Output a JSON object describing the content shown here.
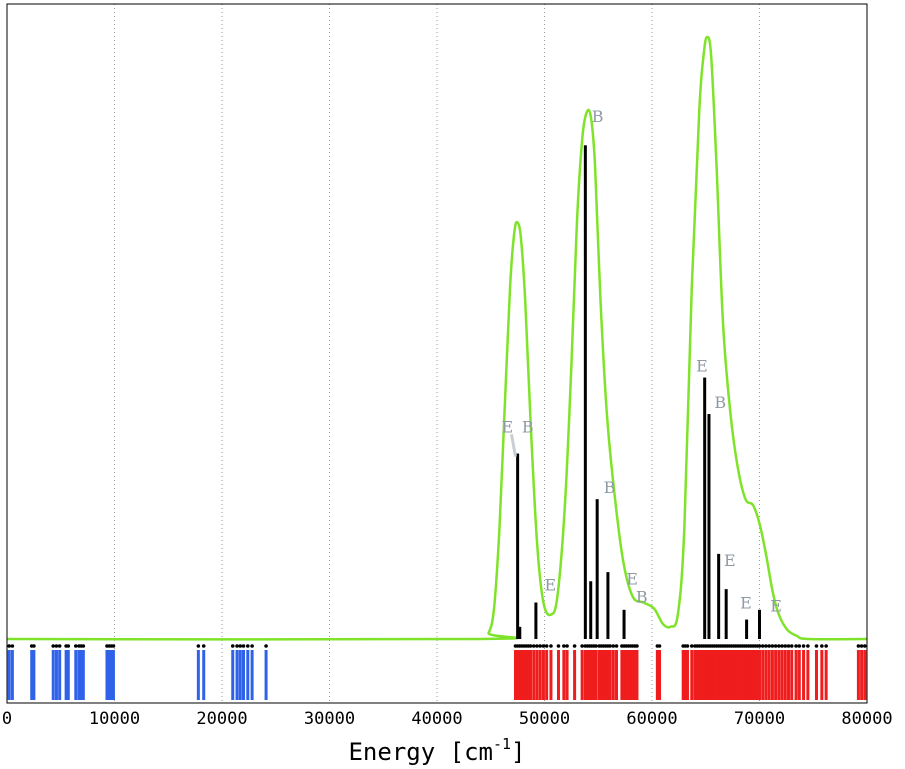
{
  "chart_data": {
    "type": "line",
    "xlabel": {
      "main": "Energy [cm",
      "sup": "-1",
      "close": "]"
    },
    "xlim": [
      0,
      80000
    ],
    "x_ticks": [
      "0",
      "10000",
      "20000",
      "30000",
      "40000",
      "50000",
      "60000",
      "70000",
      "80000"
    ],
    "x_tick_values": [
      0,
      10000,
      20000,
      30000,
      40000,
      50000,
      60000,
      70000,
      80000
    ],
    "ylim": [
      0,
      1
    ],
    "grid": "vertical dotted",
    "colors": {
      "envelope": "#7fe32a",
      "sticks": "#000000",
      "blue_levels": "#2f62e8",
      "red_levels": "#ef1d1d",
      "labels": "#8f9aa4",
      "grid": "#9a9a9a"
    },
    "series": [
      {
        "kind": "envelope",
        "points": [
          [
            0,
            0
          ],
          [
            44000,
            0
          ],
          [
            44800,
            0.01
          ],
          [
            45300,
            0.05
          ],
          [
            45800,
            0.18
          ],
          [
            46300,
            0.38
          ],
          [
            46800,
            0.58
          ],
          [
            47200,
            0.67
          ],
          [
            47500,
            0.685
          ],
          [
            47800,
            0.66
          ],
          [
            48200,
            0.56
          ],
          [
            48700,
            0.36
          ],
          [
            49300,
            0.16
          ],
          [
            49900,
            0.06
          ],
          [
            50600,
            0.04
          ],
          [
            51200,
            0.07
          ],
          [
            51900,
            0.22
          ],
          [
            52500,
            0.45
          ],
          [
            53000,
            0.68
          ],
          [
            53500,
            0.82
          ],
          [
            53900,
            0.865
          ],
          [
            54300,
            0.86
          ],
          [
            54700,
            0.78
          ],
          [
            55200,
            0.56
          ],
          [
            55800,
            0.37
          ],
          [
            56500,
            0.24
          ],
          [
            57300,
            0.13
          ],
          [
            58200,
            0.07
          ],
          [
            59200,
            0.06
          ],
          [
            60200,
            0.05
          ],
          [
            61000,
            0.025
          ],
          [
            61700,
            0.02
          ],
          [
            62400,
            0.04
          ],
          [
            63000,
            0.18
          ],
          [
            63700,
            0.58
          ],
          [
            64400,
            0.87
          ],
          [
            64800,
            0.96
          ],
          [
            65100,
            0.99
          ],
          [
            65500,
            0.96
          ],
          [
            66000,
            0.78
          ],
          [
            66600,
            0.52
          ],
          [
            67300,
            0.37
          ],
          [
            68000,
            0.28
          ],
          [
            68700,
            0.23
          ],
          [
            69400,
            0.22
          ],
          [
            70000,
            0.19
          ],
          [
            70600,
            0.14
          ],
          [
            71200,
            0.08
          ],
          [
            71800,
            0.04
          ],
          [
            72600,
            0.015
          ],
          [
            73500,
            0.005
          ],
          [
            74500,
            0
          ],
          [
            80000,
            0
          ]
        ]
      },
      {
        "kind": "sticks",
        "values": [
          [
            47500,
            0.305
          ],
          [
            47700,
            0.02
          ],
          [
            49200,
            0.06
          ],
          [
            53800,
            0.812
          ],
          [
            54300,
            0.095
          ],
          [
            54900,
            0.23
          ],
          [
            55900,
            0.11
          ],
          [
            57400,
            0.048
          ],
          [
            64900,
            0.43
          ],
          [
            65300,
            0.37
          ],
          [
            66200,
            0.14
          ],
          [
            66900,
            0.082
          ],
          [
            68800,
            0.032
          ],
          [
            70000,
            0.048
          ]
        ]
      },
      {
        "kind": "levels",
        "color": "blue",
        "values": [
          200,
          500,
          2300,
          2500,
          4300,
          4600,
          4900,
          5500,
          5700,
          6400,
          6700,
          6900,
          7100,
          9300,
          9500,
          9700,
          9900,
          17800,
          18300,
          21000,
          21400,
          21700,
          22000,
          22400,
          22800,
          24100
        ]
      },
      {
        "kind": "levels",
        "color": "red",
        "values": [
          47300,
          47500,
          47700,
          47900,
          48100,
          48300,
          48500,
          48700,
          49000,
          49300,
          49600,
          49900,
          50200,
          50600,
          51300,
          51800,
          52100,
          52800,
          53500,
          53800,
          54000,
          54200,
          54400,
          54600,
          54800,
          55100,
          55300,
          55500,
          55700,
          55900,
          56100,
          56400,
          56700,
          57200,
          57400,
          57600,
          57800,
          58000,
          58200,
          58400,
          58600,
          60500,
          60700,
          62900,
          63100,
          63300,
          63700,
          64000,
          64200,
          64400,
          64600,
          64800,
          65000,
          65200,
          65400,
          65600,
          65800,
          66000,
          66200,
          66400,
          66600,
          66800,
          67000,
          67200,
          67400,
          67600,
          67800,
          68000,
          68200,
          68400,
          68600,
          68800,
          69000,
          69200,
          69400,
          69600,
          69800,
          70000,
          70300,
          70600,
          70900,
          71200,
          71500,
          71800,
          72100,
          72400,
          72700,
          73000,
          73400,
          73700,
          74100,
          74500,
          75300,
          75800,
          76200,
          79200,
          79500,
          79800
        ]
      }
    ],
    "annotations": [
      {
        "text": "E",
        "x": 46000,
        "y": 0.34,
        "leader_to": [
          47300,
          0.3
        ]
      },
      {
        "text": "B",
        "x": 47900,
        "y": 0.34
      },
      {
        "text": "E",
        "x": 50000,
        "y": 0.08
      },
      {
        "text": "B",
        "x": 54400,
        "y": 0.85
      },
      {
        "text": "B",
        "x": 55500,
        "y": 0.24
      },
      {
        "text": "E",
        "x": 57600,
        "y": 0.09
      },
      {
        "text": "B",
        "x": 58500,
        "y": 0.06
      },
      {
        "text": "E",
        "x": 64100,
        "y": 0.44
      },
      {
        "text": "B",
        "x": 65800,
        "y": 0.38
      },
      {
        "text": "E",
        "x": 66700,
        "y": 0.12
      },
      {
        "text": "E",
        "x": 68200,
        "y": 0.05
      },
      {
        "text": "E",
        "x": 71000,
        "y": 0.045
      }
    ]
  }
}
